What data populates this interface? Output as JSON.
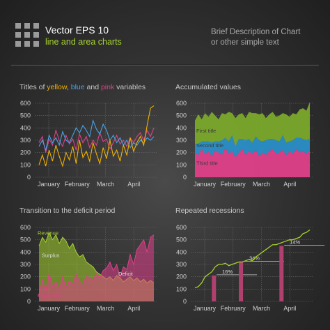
{
  "header": {
    "title": "Vector EPS 10",
    "subtitle": "line and area charts",
    "description_line1": "Brief Description of Chart",
    "description_line2": "or other simple text"
  },
  "colors": {
    "yellow": "#f2b200",
    "blue": "#4aa3e8",
    "pink": "#e0408a",
    "green": "#7aa82a",
    "lime": "#a6d22e",
    "recession": "#b0406e"
  },
  "panels": {
    "p1": {
      "title_pre": "Titles of ",
      "w_yellow": "yellow",
      "sep1": ", ",
      "w_blue": "blue",
      "sep2": " and ",
      "w_pink": "pink",
      "title_post": " variables"
    },
    "p2": {
      "title": "Accumulated values"
    },
    "p3": {
      "title": "Transition to the deficit period"
    },
    "p4": {
      "title": "Repeated recessions"
    }
  },
  "chart_data": [
    {
      "type": "line",
      "ylim": [
        0,
        600
      ],
      "yticks": [
        "0",
        "100",
        "200",
        "300",
        "400",
        "500",
        "600"
      ],
      "xticks": [
        "January",
        "February",
        "March",
        "April"
      ],
      "grid": true,
      "series": [
        {
          "color": "#e0408a",
          "values": [
            280,
            330,
            200,
            310,
            260,
            380,
            300,
            250,
            340,
            270,
            310,
            220,
            350,
            280,
            330,
            240,
            300,
            260,
            360,
            290,
            310,
            230,
            280,
            340,
            270,
            300,
            250,
            320,
            280,
            330,
            360,
            300,
            380,
            330,
            400
          ]
        },
        {
          "color": "#4aa3e8",
          "values": [
            250,
            300,
            220,
            340,
            280,
            320,
            260,
            370,
            300,
            280,
            340,
            400,
            360,
            420,
            380,
            330,
            460,
            390,
            350,
            430,
            380,
            300,
            340,
            280,
            320,
            260,
            300,
            240,
            280,
            260,
            300,
            280,
            320,
            300,
            330
          ]
        },
        {
          "color": "#f2b200",
          "values": [
            100,
            180,
            90,
            220,
            130,
            260,
            170,
            90,
            200,
            140,
            250,
            110,
            300,
            160,
            210,
            130,
            280,
            190,
            110,
            240,
            150,
            300,
            170,
            220,
            130,
            260,
            180,
            320,
            210,
            280,
            330,
            260,
            420,
            560,
            580
          ]
        }
      ]
    },
    {
      "type": "area",
      "ylim": [
        0,
        600
      ],
      "yticks": [
        "0",
        "100",
        "200",
        "300",
        "400",
        "500",
        "600"
      ],
      "xticks": [
        "January",
        "February",
        "March",
        "April"
      ],
      "stacked": true,
      "series": [
        {
          "name": "Third title",
          "color": "#e0408a",
          "values": [
            200,
            180,
            230,
            190,
            210,
            170,
            220,
            200,
            180,
            240,
            190,
            210,
            160,
            200,
            230,
            180,
            210,
            190,
            220,
            170,
            200,
            180,
            210,
            230,
            190,
            200,
            220,
            180,
            210,
            190,
            230,
            200,
            210,
            190,
            220
          ]
        },
        {
          "name": "Second title",
          "color": "#2a8fc8",
          "values": [
            70,
            90,
            60,
            100,
            80,
            110,
            70,
            90,
            120,
            80,
            100,
            130,
            90,
            110,
            80,
            120,
            100,
            90,
            110,
            130,
            90,
            120,
            100,
            80,
            110,
            90,
            120,
            100,
            80,
            110,
            90,
            120,
            100,
            110,
            90
          ]
        },
        {
          "name": "First title",
          "color": "#7aa82a",
          "values": [
            190,
            240,
            180,
            230,
            200,
            250,
            210,
            180,
            220,
            190,
            240,
            180,
            230,
            200,
            210,
            180,
            220,
            240,
            190,
            210,
            230,
            180,
            200,
            220,
            190,
            210,
            180,
            230,
            200,
            220,
            190,
            230,
            250,
            240,
            300
          ]
        }
      ]
    },
    {
      "type": "area",
      "ylim": [
        0,
        600
      ],
      "yticks": [
        "0",
        "100",
        "200",
        "300",
        "400",
        "500",
        "600"
      ],
      "xticks": [
        "January",
        "February",
        "March",
        "April"
      ],
      "annotations": [
        "Revenue",
        "Surplus",
        "Deficit",
        "Expenses"
      ],
      "series": [
        {
          "name": "Revenue",
          "color": "#a6d22e",
          "values": [
            450,
            520,
            480,
            560,
            500,
            540,
            470,
            520,
            490,
            430,
            470,
            400,
            360,
            380,
            320,
            300,
            280,
            240,
            220,
            200,
            180,
            200,
            170,
            210,
            190,
            160,
            180,
            200,
            170,
            190,
            160,
            180,
            150,
            170,
            150
          ]
        },
        {
          "name": "Expenses",
          "color": "#e0408a",
          "values": [
            50,
            180,
            80,
            230,
            120,
            160,
            90,
            200,
            110,
            170,
            140,
            220,
            160,
            130,
            210,
            190,
            170,
            230,
            190,
            250,
            270,
            320,
            250,
            300,
            200,
            280,
            260,
            380,
            300,
            420,
            460,
            500,
            400,
            520,
            540
          ]
        }
      ]
    },
    {
      "type": "line",
      "ylim": [
        0,
        600
      ],
      "yticks": [
        "0",
        "100",
        "200",
        "300",
        "400",
        "500",
        "600"
      ],
      "xticks": [
        "January",
        "February",
        "March",
        "April"
      ],
      "series": [
        {
          "color": "#a6d22e",
          "values": [
            110,
            120,
            150,
            200,
            220,
            240,
            280,
            300,
            300,
            310,
            290,
            300,
            310,
            320,
            320,
            330,
            340,
            330,
            360,
            380,
            400,
            420,
            440,
            460,
            460,
            470,
            480,
            490,
            500,
            500,
            510,
            520,
            550,
            560,
            580
          ]
        }
      ],
      "recession_bars": [
        {
          "from": 5,
          "to": 6,
          "top": 210,
          "label": "16%"
        },
        {
          "from": 13,
          "to": 14,
          "top": 320,
          "label": "34%"
        },
        {
          "from": 25,
          "to": 26,
          "top": 450,
          "label": "14%"
        }
      ]
    }
  ]
}
